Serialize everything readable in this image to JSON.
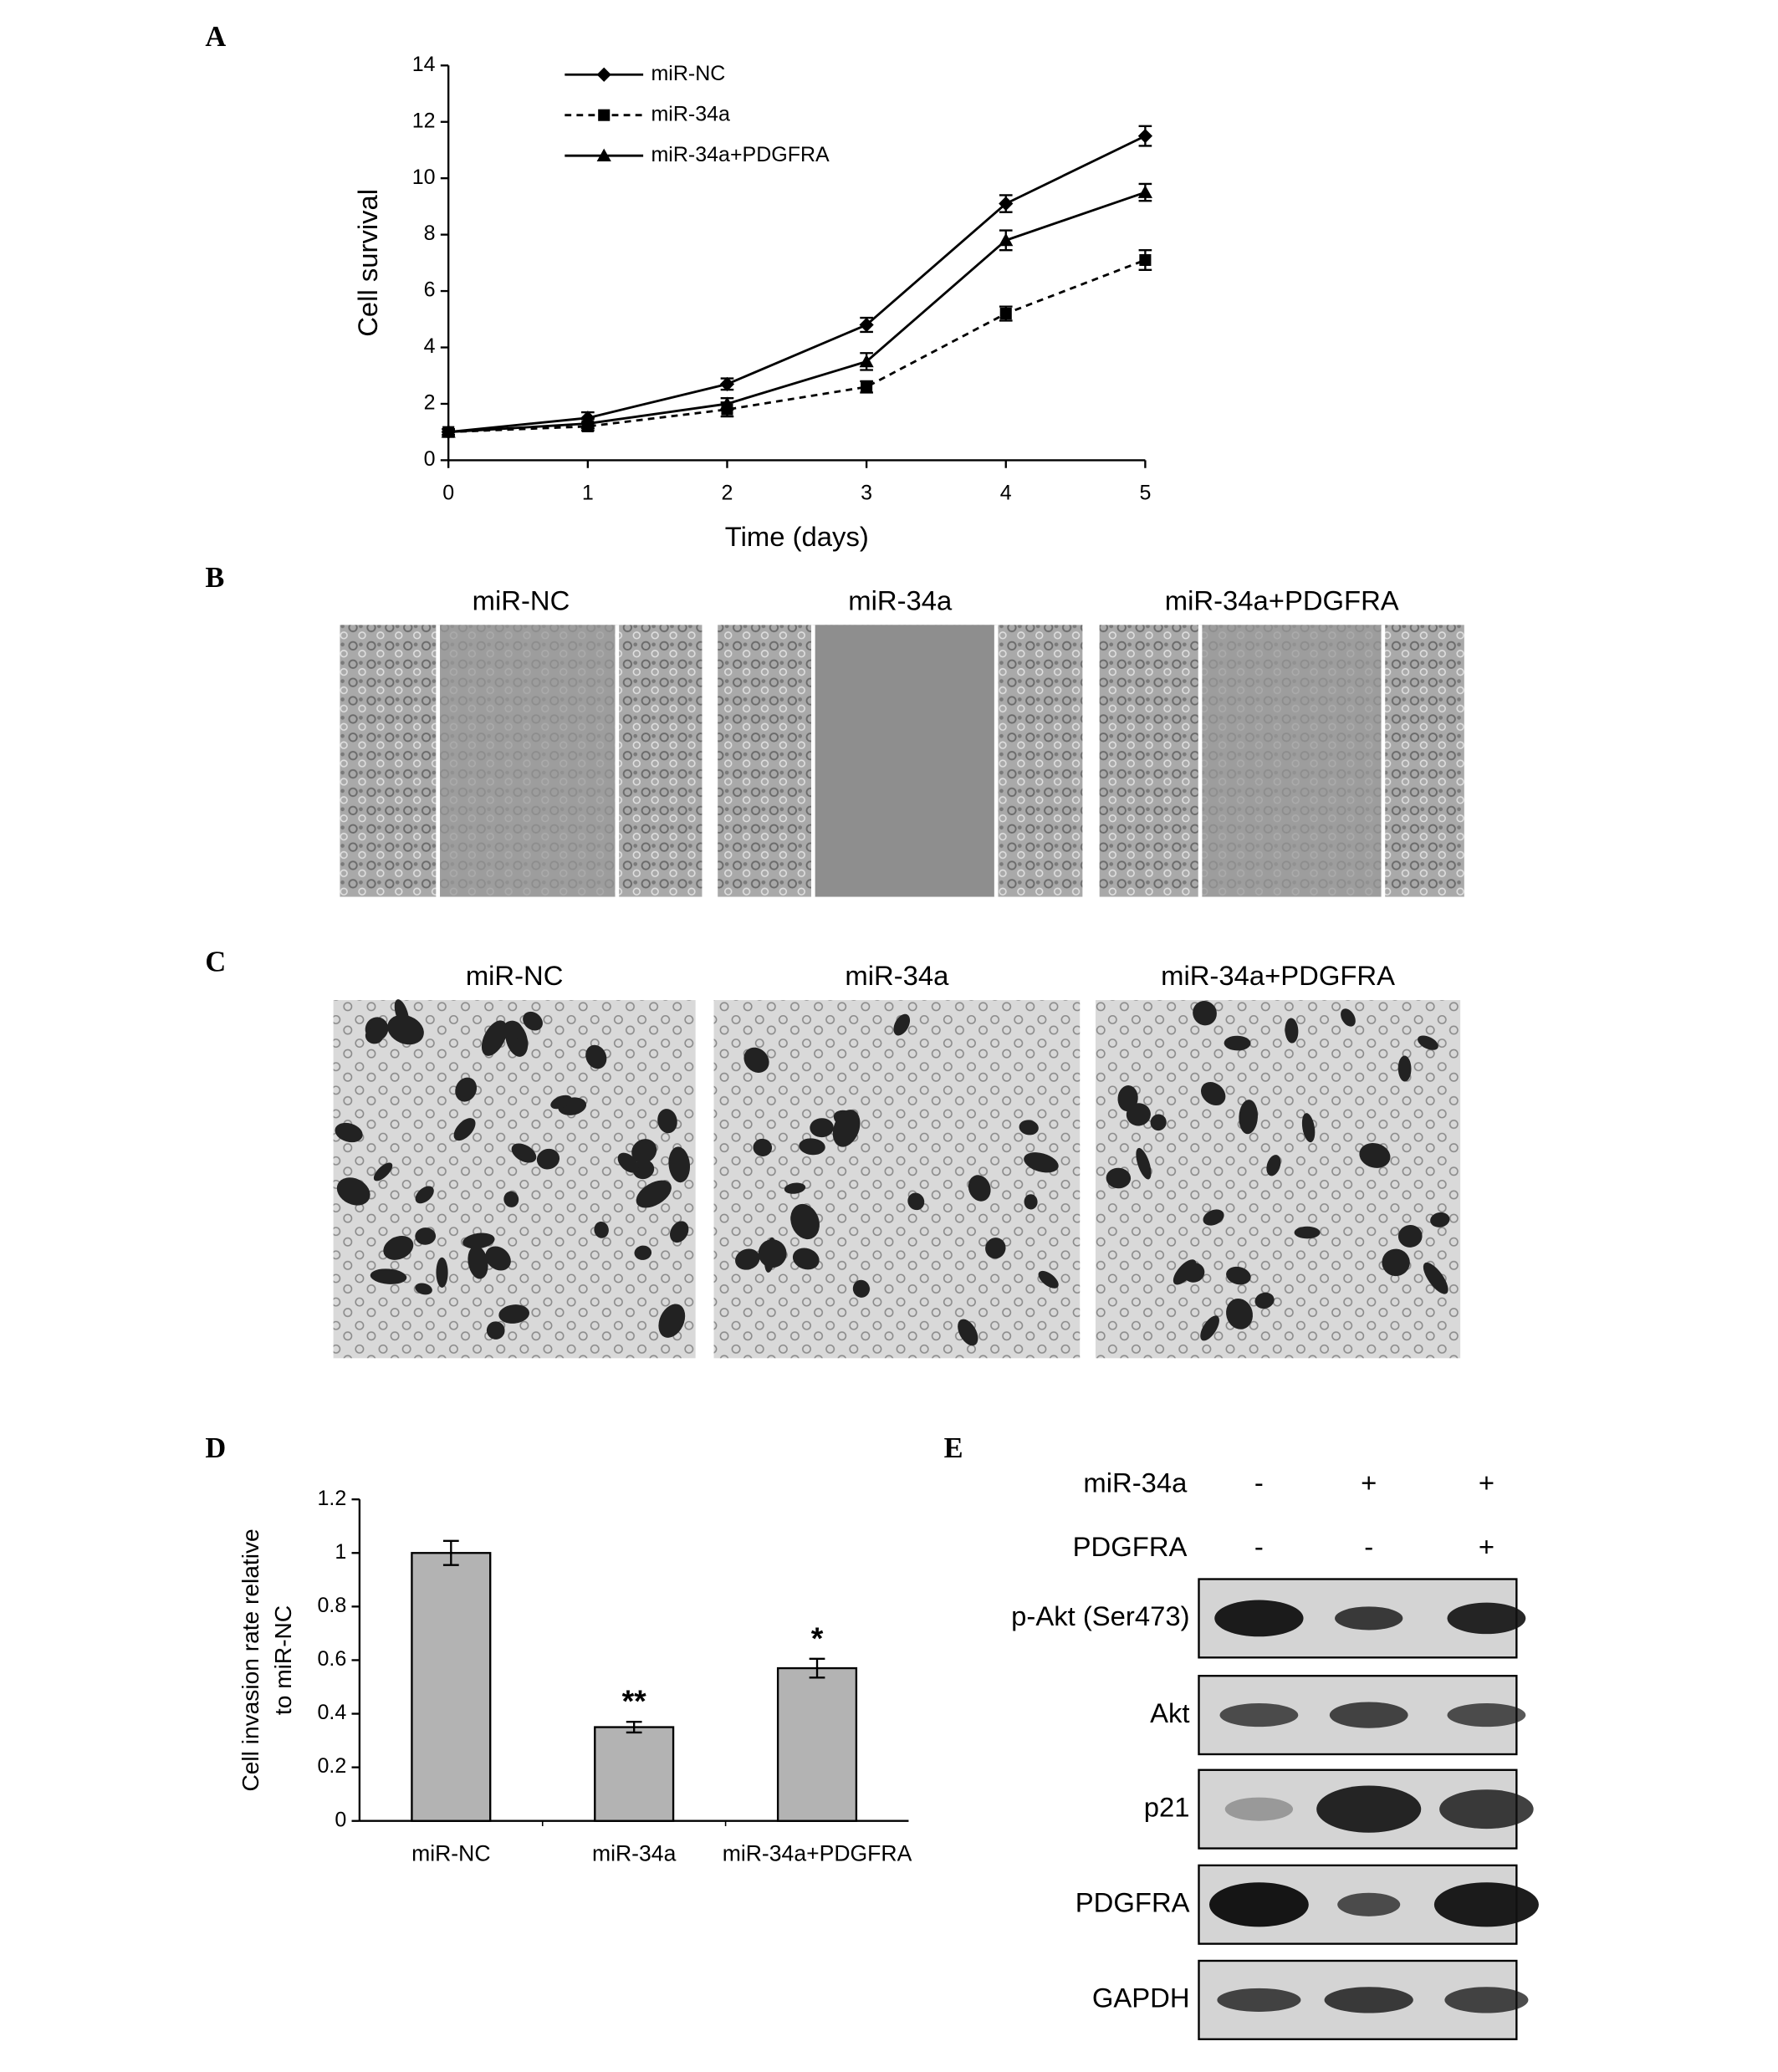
{
  "chart_data": [
    {
      "panel": "A",
      "type": "line",
      "xlabel": "Time (days)",
      "ylabel": "Cell survival",
      "x": [
        0,
        1,
        2,
        3,
        4,
        5
      ],
      "xlim": [
        0,
        5
      ],
      "xticks": [
        0,
        1,
        2,
        3,
        4,
        5
      ],
      "ylim": [
        0,
        14
      ],
      "yticks": [
        0,
        2,
        4,
        6,
        8,
        10,
        12,
        14
      ],
      "legend": "upper left",
      "series": [
        {
          "name": "miR-NC",
          "color": "#000000",
          "marker": "diamond",
          "line_style": "solid",
          "values": [
            1,
            1.5,
            2.7,
            4.8,
            9.1,
            11.5
          ],
          "errors": [
            0.1,
            0.2,
            0.2,
            0.25,
            0.3,
            0.35
          ]
        },
        {
          "name": "miR-34a",
          "color": "#000000",
          "marker": "square",
          "line_style": "dashed",
          "values": [
            1,
            1.2,
            1.8,
            2.6,
            5.2,
            7.1
          ],
          "errors": [
            0.1,
            0.15,
            0.25,
            0.2,
            0.25,
            0.35
          ]
        },
        {
          "name": "miR-34a+PDGFRA",
          "color": "#000000",
          "marker": "triangle",
          "line_style": "solid",
          "values": [
            1,
            1.3,
            2.0,
            3.5,
            7.8,
            9.5
          ],
          "errors": [
            0.1,
            0.15,
            0.2,
            0.3,
            0.35,
            0.3
          ]
        }
      ]
    },
    {
      "panel": "D",
      "type": "bar",
      "ylabel": [
        "Cell invasion rate relative",
        "to miR-NC"
      ],
      "categories": [
        "miR-NC",
        "miR-34a",
        "miR-34a+PDGFRA"
      ],
      "values": [
        1.0,
        0.35,
        0.57
      ],
      "errors": [
        0.045,
        0.02,
        0.035
      ],
      "value_annotations": [
        null,
        "**",
        "*"
      ],
      "color": "#b3b3b3",
      "ylim": [
        0,
        1.2
      ],
      "yticks": [
        0,
        0.2,
        0.4,
        0.6,
        0.8,
        1,
        1.2
      ]
    }
  ],
  "panels": {
    "B": {
      "label": "B",
      "titles": [
        "miR-NC",
        "miR-34a",
        "miR-34a+PDGFRA"
      ]
    },
    "C": {
      "label": "C",
      "titles": [
        "miR-NC",
        "miR-34a",
        "miR-34a+PDGFRA"
      ]
    },
    "E": {
      "label": "E",
      "conditions": [
        {
          "name": "miR-34a",
          "lanes": [
            "-",
            "+",
            "+"
          ]
        },
        {
          "name": "PDGFRA",
          "lanes": [
            "-",
            "-",
            "+"
          ]
        }
      ],
      "rows": [
        "p-Akt (Ser473)",
        "Akt",
        "p21",
        "PDGFRA",
        "GAPDH"
      ]
    }
  }
}
